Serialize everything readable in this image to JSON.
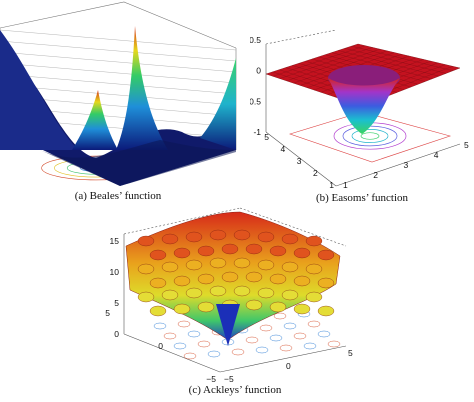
{
  "figure": {
    "captions": {
      "a": "(a) Beales’ function",
      "b": "(b) Easoms’ function",
      "c": "(c) Ackleys’ function"
    }
  },
  "chart_data": [
    {
      "panel": "a",
      "type": "surface",
      "title": "",
      "function": "Beale",
      "tick_labels": {}
    },
    {
      "panel": "b",
      "type": "surface",
      "title": "",
      "function": "Easom",
      "zlim": [
        -1,
        0.5
      ],
      "tick_labels": {
        "z": [
          "0.5",
          "0",
          "-0.5",
          "-1"
        ],
        "x": [
          "1",
          "2",
          "3",
          "4",
          "5"
        ],
        "y": [
          "1",
          "2",
          "3",
          "4",
          "5"
        ]
      }
    },
    {
      "panel": "c",
      "type": "surface",
      "title": "",
      "function": "Ackley",
      "zlim": [
        0,
        15
      ],
      "tick_labels": {
        "z": [
          "15",
          "10",
          "5",
          "0"
        ],
        "x": [
          "−5",
          "0",
          "5"
        ],
        "y": [
          "5",
          "0",
          "−5"
        ]
      }
    }
  ]
}
